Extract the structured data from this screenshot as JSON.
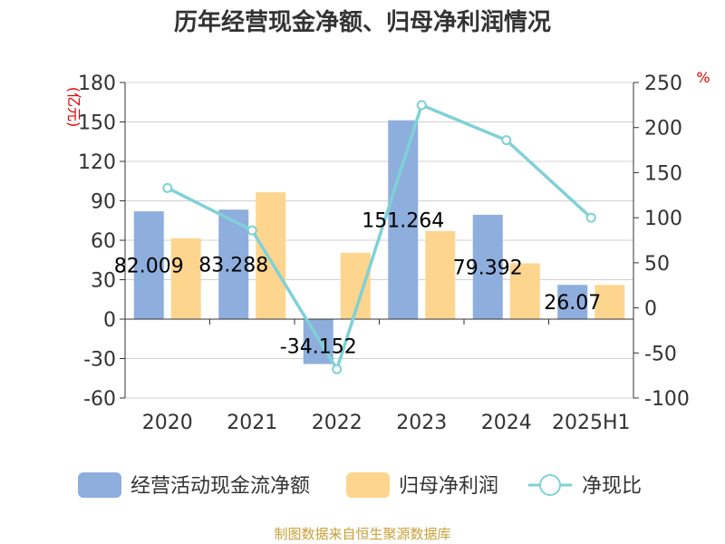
{
  "title": "历年经营现金净额、归母净利润情况",
  "source": "制图数据来自恒生聚源数据库",
  "colors": {
    "cash_flow": "#8eaedd",
    "net_profit": "#fdd58f",
    "ratio": "#7fd1d7",
    "unit_text": "#e60000",
    "source_text": "#c9a13a"
  },
  "chart_data": {
    "type": "bar",
    "title": "历年经营现金净额、归母净利润情况",
    "categories": [
      "2020",
      "2021",
      "2022",
      "2023",
      "2024",
      "2025H1"
    ],
    "left_axis": {
      "unit": "(亿元)",
      "ylim": [
        -60,
        180
      ],
      "ticks": [
        180,
        150,
        120,
        90,
        60,
        30,
        0,
        -30,
        -60
      ]
    },
    "right_axis": {
      "unit": "%",
      "ylim": [
        -100,
        250
      ],
      "ticks": [
        250,
        200,
        150,
        100,
        50,
        0,
        -50,
        -100
      ]
    },
    "grid": true,
    "legend_position": "bottom",
    "series": [
      {
        "name": "经营活动现金流净额",
        "type": "bar",
        "axis": "left",
        "values": [
          82.009,
          83.288,
          -34.152,
          151.264,
          79.392,
          26.07
        ],
        "labels": [
          "82.009",
          "83.288",
          "-34.152",
          "151.264",
          "79.392",
          "26.07"
        ]
      },
      {
        "name": "归母净利润",
        "type": "bar",
        "axis": "left",
        "values": [
          61.5,
          96.5,
          50.5,
          67.0,
          42.5,
          26.0
        ]
      },
      {
        "name": "净现比",
        "type": "line",
        "axis": "right",
        "values": [
          133,
          86,
          -68,
          225,
          186,
          100
        ]
      }
    ]
  }
}
